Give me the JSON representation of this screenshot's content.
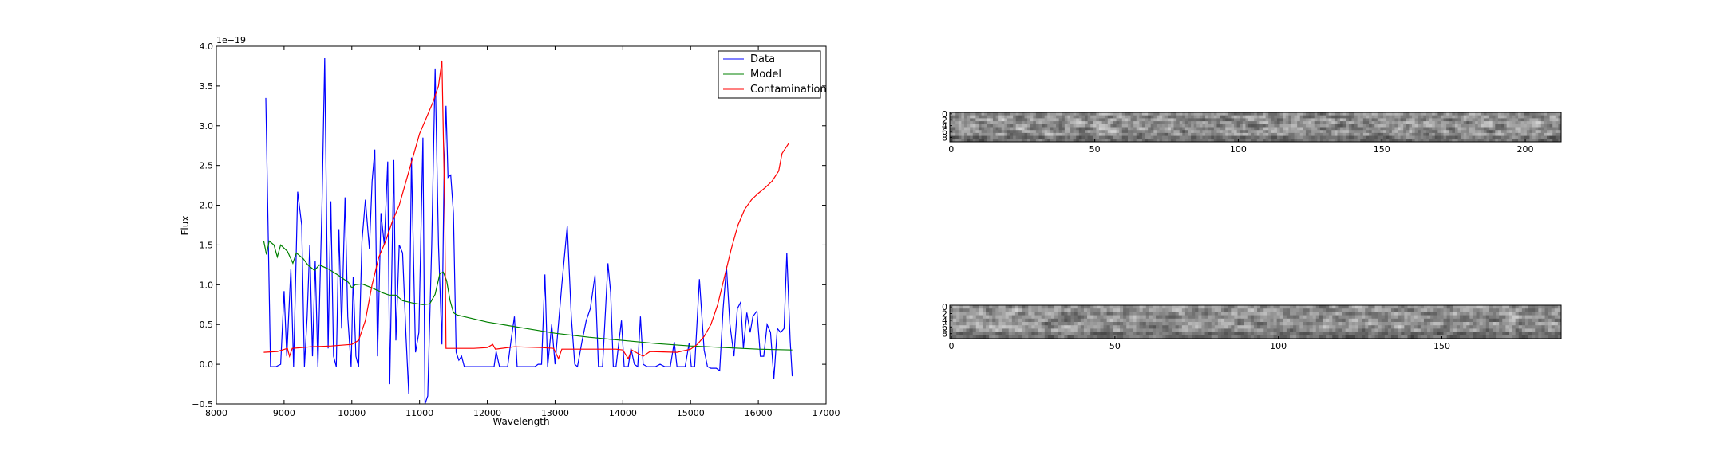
{
  "chart_data": [
    {
      "type": "line",
      "title": "",
      "xlabel": "Wavelength",
      "ylabel": "Flux",
      "offset_text": "1e−19",
      "xlim": [
        8000,
        17000
      ],
      "ylim": [
        -0.5,
        4.0
      ],
      "xticks": [
        8000,
        9000,
        10000,
        11000,
        12000,
        13000,
        14000,
        15000,
        16000,
        17000
      ],
      "yticks": [
        -0.5,
        0.0,
        0.5,
        1.0,
        1.5,
        2.0,
        2.5,
        3.0,
        3.5,
        4.0
      ],
      "ytick_labels": [
        "−0.5",
        "0.0",
        "0.5",
        "1.0",
        "1.5",
        "2.0",
        "2.5",
        "3.0",
        "3.5",
        "4.0"
      ],
      "grid": false,
      "legend_position": "top-right",
      "series": [
        {
          "name": "Data",
          "color": "#0000ff",
          "points": [
            [
              8730,
              3.35
            ],
            [
              8800,
              -0.03
            ],
            [
              8880,
              -0.03
            ],
            [
              8950,
              0.0
            ],
            [
              9000,
              0.92
            ],
            [
              9040,
              0.1
            ],
            [
              9100,
              1.2
            ],
            [
              9140,
              -0.03
            ],
            [
              9200,
              2.17
            ],
            [
              9260,
              1.75
            ],
            [
              9300,
              -0.03
            ],
            [
              9340,
              0.6
            ],
            [
              9380,
              1.5
            ],
            [
              9420,
              0.1
            ],
            [
              9460,
              1.3
            ],
            [
              9500,
              -0.03
            ],
            [
              9560,
              2.0
            ],
            [
              9600,
              3.85
            ],
            [
              9650,
              0.2
            ],
            [
              9690,
              2.05
            ],
            [
              9730,
              0.1
            ],
            [
              9770,
              -0.03
            ],
            [
              9810,
              1.7
            ],
            [
              9850,
              0.45
            ],
            [
              9900,
              2.1
            ],
            [
              9940,
              0.6
            ],
            [
              9990,
              -0.03
            ],
            [
              10020,
              1.1
            ],
            [
              10060,
              0.1
            ],
            [
              10100,
              -0.03
            ],
            [
              10150,
              1.55
            ],
            [
              10200,
              2.07
            ],
            [
              10260,
              1.45
            ],
            [
              10300,
              2.3
            ],
            [
              10340,
              2.7
            ],
            [
              10380,
              0.1
            ],
            [
              10430,
              1.9
            ],
            [
              10480,
              1.5
            ],
            [
              10530,
              2.55
            ],
            [
              10560,
              -0.25
            ],
            [
              10620,
              2.57
            ],
            [
              10650,
              0.3
            ],
            [
              10700,
              1.5
            ],
            [
              10750,
              1.4
            ],
            [
              10800,
              0.35
            ],
            [
              10840,
              -0.37
            ],
            [
              10880,
              2.6
            ],
            [
              10940,
              0.15
            ],
            [
              10990,
              0.4
            ],
            [
              11050,
              2.85
            ],
            [
              11080,
              -0.5
            ],
            [
              11120,
              -0.4
            ],
            [
              11180,
              1.5
            ],
            [
              11230,
              3.72
            ],
            [
              11280,
              1.5
            ],
            [
              11330,
              0.25
            ],
            [
              11360,
              2.3
            ],
            [
              11390,
              3.25
            ],
            [
              11420,
              2.35
            ],
            [
              11460,
              2.38
            ],
            [
              11500,
              1.9
            ],
            [
              11540,
              0.15
            ],
            [
              11580,
              0.05
            ],
            [
              11620,
              0.1
            ],
            [
              11660,
              -0.03
            ],
            [
              11750,
              -0.03
            ],
            [
              11900,
              -0.03
            ],
            [
              12000,
              -0.03
            ],
            [
              12100,
              -0.03
            ],
            [
              12130,
              0.16
            ],
            [
              12180,
              -0.03
            ],
            [
              12300,
              -0.03
            ],
            [
              12350,
              0.3
            ],
            [
              12400,
              0.6
            ],
            [
              12440,
              -0.03
            ],
            [
              12550,
              -0.03
            ],
            [
              12700,
              -0.03
            ],
            [
              12750,
              0.0
            ],
            [
              12800,
              0.0
            ],
            [
              12850,
              1.13
            ],
            [
              12890,
              -0.03
            ],
            [
              12950,
              0.5
            ],
            [
              13000,
              0.0
            ],
            [
              13100,
              1.0
            ],
            [
              13180,
              1.74
            ],
            [
              13240,
              0.6
            ],
            [
              13290,
              0.0
            ],
            [
              13330,
              -0.03
            ],
            [
              13400,
              0.3
            ],
            [
              13460,
              0.55
            ],
            [
              13520,
              0.7
            ],
            [
              13590,
              1.12
            ],
            [
              13640,
              -0.03
            ],
            [
              13700,
              -0.03
            ],
            [
              13780,
              1.27
            ],
            [
              13820,
              0.9
            ],
            [
              13860,
              -0.03
            ],
            [
              13900,
              -0.03
            ],
            [
              13980,
              0.55
            ],
            [
              14020,
              -0.03
            ],
            [
              14080,
              -0.03
            ],
            [
              14120,
              0.2
            ],
            [
              14170,
              0.0
            ],
            [
              14220,
              -0.03
            ],
            [
              14260,
              0.6
            ],
            [
              14300,
              0.0
            ],
            [
              14360,
              -0.03
            ],
            [
              14420,
              -0.03
            ],
            [
              14480,
              -0.03
            ],
            [
              14550,
              0.0
            ],
            [
              14620,
              -0.03
            ],
            [
              14700,
              -0.03
            ],
            [
              14760,
              0.28
            ],
            [
              14800,
              -0.03
            ],
            [
              14850,
              -0.03
            ],
            [
              14920,
              -0.03
            ],
            [
              14980,
              0.27
            ],
            [
              15010,
              -0.03
            ],
            [
              15060,
              -0.03
            ],
            [
              15130,
              1.07
            ],
            [
              15200,
              0.18
            ],
            [
              15250,
              -0.03
            ],
            [
              15300,
              -0.05
            ],
            [
              15380,
              -0.05
            ],
            [
              15430,
              -0.08
            ],
            [
              15480,
              0.7
            ],
            [
              15530,
              1.23
            ],
            [
              15580,
              0.5
            ],
            [
              15640,
              0.1
            ],
            [
              15690,
              0.7
            ],
            [
              15740,
              0.78
            ],
            [
              15780,
              0.2
            ],
            [
              15830,
              0.65
            ],
            [
              15880,
              0.4
            ],
            [
              15920,
              0.6
            ],
            [
              15980,
              0.67
            ],
            [
              16030,
              0.1
            ],
            [
              16080,
              0.1
            ],
            [
              16130,
              0.5
            ],
            [
              16180,
              0.4
            ],
            [
              16230,
              -0.18
            ],
            [
              16280,
              0.45
            ],
            [
              16330,
              0.4
            ],
            [
              16380,
              0.45
            ],
            [
              16420,
              1.4
            ],
            [
              16470,
              0.3
            ],
            [
              16500,
              -0.15
            ]
          ]
        },
        {
          "name": "Model",
          "color": "#008000",
          "points": [
            [
              8700,
              1.55
            ],
            [
              8740,
              1.38
            ],
            [
              8780,
              1.55
            ],
            [
              8850,
              1.5
            ],
            [
              8900,
              1.35
            ],
            [
              8950,
              1.5
            ],
            [
              9050,
              1.42
            ],
            [
              9130,
              1.27
            ],
            [
              9180,
              1.4
            ],
            [
              9280,
              1.33
            ],
            [
              9350,
              1.25
            ],
            [
              9450,
              1.18
            ],
            [
              9520,
              1.25
            ],
            [
              9650,
              1.2
            ],
            [
              9800,
              1.12
            ],
            [
              9950,
              1.03
            ],
            [
              10000,
              0.96
            ],
            [
              10050,
              1.0
            ],
            [
              10150,
              1.01
            ],
            [
              10300,
              0.96
            ],
            [
              10450,
              0.9
            ],
            [
              10550,
              0.87
            ],
            [
              10650,
              0.87
            ],
            [
              10750,
              0.8
            ],
            [
              10900,
              0.77
            ],
            [
              11050,
              0.75
            ],
            [
              11150,
              0.76
            ],
            [
              11230,
              0.88
            ],
            [
              11300,
              1.14
            ],
            [
              11350,
              1.16
            ],
            [
              11400,
              1.05
            ],
            [
              11450,
              0.8
            ],
            [
              11500,
              0.65
            ],
            [
              11550,
              0.62
            ],
            [
              11700,
              0.59
            ],
            [
              12000,
              0.53
            ],
            [
              12500,
              0.46
            ],
            [
              13000,
              0.39
            ],
            [
              13500,
              0.34
            ],
            [
              14000,
              0.3
            ],
            [
              14500,
              0.26
            ],
            [
              15000,
              0.23
            ],
            [
              15500,
              0.21
            ],
            [
              16000,
              0.19
            ],
            [
              16500,
              0.18
            ]
          ]
        },
        {
          "name": "Contamination",
          "color": "#ff0000",
          "points": [
            [
              8700,
              0.15
            ],
            [
              8900,
              0.16
            ],
            [
              9050,
              0.2
            ],
            [
              9080,
              0.1
            ],
            [
              9120,
              0.2
            ],
            [
              9400,
              0.22
            ],
            [
              9700,
              0.23
            ],
            [
              10000,
              0.25
            ],
            [
              10100,
              0.3
            ],
            [
              10200,
              0.55
            ],
            [
              10300,
              1.0
            ],
            [
              10400,
              1.35
            ],
            [
              10500,
              1.55
            ],
            [
              10600,
              1.8
            ],
            [
              10700,
              2.0
            ],
            [
              10800,
              2.3
            ],
            [
              10900,
              2.6
            ],
            [
              11000,
              2.9
            ],
            [
              11100,
              3.1
            ],
            [
              11200,
              3.3
            ],
            [
              11280,
              3.5
            ],
            [
              11330,
              3.82
            ],
            [
              11370,
              2.0
            ],
            [
              11390,
              0.2
            ],
            [
              11450,
              0.2
            ],
            [
              11600,
              0.2
            ],
            [
              11800,
              0.2
            ],
            [
              12000,
              0.21
            ],
            [
              12080,
              0.25
            ],
            [
              12120,
              0.19
            ],
            [
              12400,
              0.22
            ],
            [
              12800,
              0.21
            ],
            [
              12980,
              0.2
            ],
            [
              13050,
              0.07
            ],
            [
              13100,
              0.19
            ],
            [
              13500,
              0.19
            ],
            [
              13900,
              0.19
            ],
            [
              14000,
              0.18
            ],
            [
              14080,
              0.07
            ],
            [
              14130,
              0.18
            ],
            [
              14300,
              0.1
            ],
            [
              14400,
              0.16
            ],
            [
              14800,
              0.15
            ],
            [
              15000,
              0.19
            ],
            [
              15100,
              0.25
            ],
            [
              15200,
              0.35
            ],
            [
              15300,
              0.5
            ],
            [
              15400,
              0.75
            ],
            [
              15500,
              1.1
            ],
            [
              15600,
              1.45
            ],
            [
              15700,
              1.75
            ],
            [
              15800,
              1.95
            ],
            [
              15900,
              2.07
            ],
            [
              16000,
              2.15
            ],
            [
              16100,
              2.22
            ],
            [
              16200,
              2.3
            ],
            [
              16300,
              2.43
            ],
            [
              16350,
              2.65
            ],
            [
              16450,
              2.78
            ]
          ]
        }
      ]
    },
    {
      "type": "heatmap",
      "colormap": "gray",
      "n_cols": 213,
      "n_rows": 10,
      "xticks": [
        0,
        50,
        100,
        150,
        200
      ],
      "yticks": [
        0,
        2,
        4,
        6,
        8
      ],
      "grid": false
    },
    {
      "type": "heatmap",
      "colormap": "gray",
      "n_cols": 187,
      "n_rows": 10,
      "xticks": [
        0,
        50,
        100,
        150
      ],
      "yticks": [
        0,
        2,
        4,
        6,
        8
      ],
      "grid": false
    }
  ]
}
